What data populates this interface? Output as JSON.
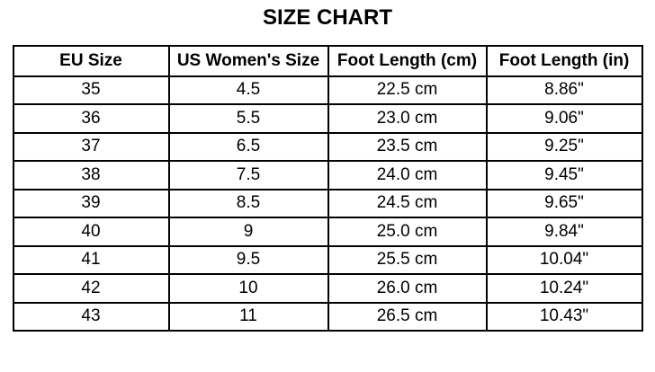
{
  "chart_data": {
    "type": "table",
    "title": "SIZE CHART",
    "headers": [
      "EU Size",
      "US Women's Size",
      "Foot Length (cm)",
      "Foot Length (in)"
    ],
    "rows": [
      [
        "35",
        "4.5",
        "22.5 cm",
        "8.86\""
      ],
      [
        "36",
        "5.5",
        "23.0 cm",
        "9.06\""
      ],
      [
        "37",
        "6.5",
        "23.5 cm",
        "9.25\""
      ],
      [
        "38",
        "7.5",
        "24.0 cm",
        "9.45\""
      ],
      [
        "39",
        "8.5",
        "24.5 cm",
        "9.65\""
      ],
      [
        "40",
        "9",
        "25.0 cm",
        "9.84\""
      ],
      [
        "41",
        "9.5",
        "25.5 cm",
        "10.04\""
      ],
      [
        "42",
        "10",
        "26.0 cm",
        "10.24\""
      ],
      [
        "43",
        "11",
        "26.5 cm",
        "10.43\""
      ]
    ]
  },
  "colors": {
    "background": "#ffffff",
    "text": "#000000",
    "border": "#000000"
  }
}
